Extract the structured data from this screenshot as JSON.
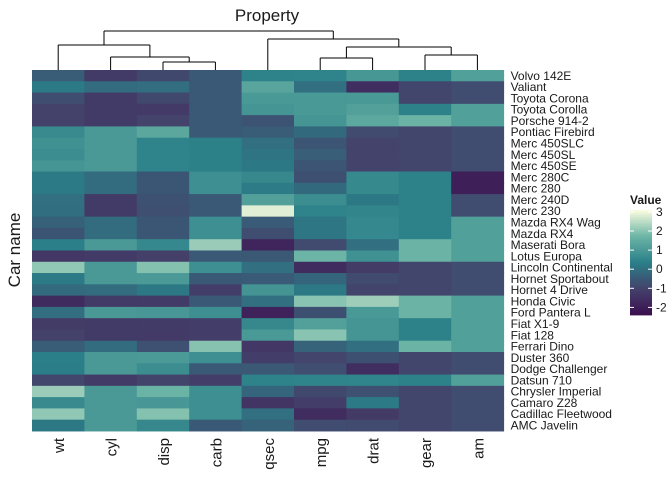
{
  "chart_data": {
    "type": "heatmap",
    "title": "Property",
    "xlabel": "",
    "ylabel": "Car name",
    "columns": [
      "wt",
      "cyl",
      "disp",
      "carb",
      "qsec",
      "mpg",
      "drat",
      "gear",
      "am"
    ],
    "rows": [
      "Volvo 142E",
      "Valiant",
      "Toyota Corona",
      "Toyota Corolla",
      "Porsche 914-2",
      "Pontiac Firebird",
      "Merc 450SLC",
      "Merc 450SL",
      "Merc 450SE",
      "Merc 280C",
      "Merc 280",
      "Merc 240D",
      "Merc 230",
      "Mazda RX4 Wag",
      "Mazda RX4",
      "Maserati Bora",
      "Lotus Europa",
      "Lincoln Continental",
      "Hornet Sportabout",
      "Hornet 4 Drive",
      "Honda Civic",
      "Ford Pantera L",
      "Fiat X1-9",
      "Fiat 128",
      "Ferrari Dino",
      "Duster 360",
      "Dodge Challenger",
      "Datsun 710",
      "Chrysler Imperial",
      "Camaro Z28",
      "Cadillac Fleetwood",
      "AMC Javelin"
    ],
    "values": [
      [
        -0.45,
        -1.22,
        -0.89,
        -0.5,
        0.43,
        0.45,
        0.96,
        0.42,
        1.19
      ],
      [
        0.23,
        -0.1,
        -0.05,
        -0.5,
        1.33,
        0.0,
        -1.56,
        -0.93,
        -0.81
      ],
      [
        -0.77,
        -1.22,
        -0.89,
        -0.5,
        1.0,
        1.0,
        1.0,
        -0.93,
        -0.81
      ],
      [
        -1.04,
        -1.22,
        -1.23,
        -0.5,
        0.9,
        1.0,
        1.2,
        0.42,
        1.19
      ],
      [
        -1.06,
        -1.22,
        -1.0,
        -0.5,
        -0.64,
        0.9,
        1.4,
        1.68,
        1.19
      ],
      [
        0.64,
        1.01,
        1.37,
        -0.5,
        -0.45,
        -0.15,
        -0.84,
        -0.93,
        -0.81
      ],
      [
        0.8,
        1.01,
        0.45,
        0.4,
        0.0,
        -0.6,
        -1.0,
        -0.93,
        -0.81
      ],
      [
        0.7,
        1.01,
        0.45,
        0.4,
        0.1,
        -0.4,
        -1.0,
        -0.93,
        -0.81
      ],
      [
        0.9,
        1.01,
        0.45,
        0.4,
        0.2,
        -0.6,
        -1.0,
        -0.93,
        -0.81
      ],
      [
        0.23,
        -0.1,
        -0.57,
        0.77,
        0.59,
        -0.7,
        0.6,
        0.42,
        -1.96
      ],
      [
        0.23,
        -0.1,
        -0.57,
        0.77,
        0.25,
        -0.15,
        0.6,
        0.42,
        -1.96
      ],
      [
        0.0,
        -1.22,
        -0.68,
        -0.5,
        1.2,
        0.7,
        0.2,
        0.42,
        -0.81
      ],
      [
        -0.03,
        -1.22,
        -0.73,
        -0.5,
        2.83,
        0.45,
        0.5,
        0.42,
        -0.81
      ],
      [
        -0.35,
        -0.1,
        -0.57,
        0.75,
        -0.47,
        0.15,
        0.57,
        0.42,
        1.19
      ],
      [
        -0.61,
        -0.1,
        -0.57,
        0.75,
        -0.78,
        0.15,
        0.57,
        0.42,
        1.19
      ],
      [
        0.36,
        1.01,
        0.57,
        2.15,
        -1.82,
        -0.84,
        0.0,
        1.68,
        1.19
      ],
      [
        -1.31,
        -1.22,
        -1.09,
        -0.5,
        -0.53,
        1.71,
        0.8,
        1.68,
        1.19
      ],
      [
        2.08,
        1.01,
        1.95,
        0.75,
        0.0,
        -1.61,
        -1.2,
        -0.93,
        -0.81
      ],
      [
        0.23,
        1.01,
        1.04,
        -0.5,
        -0.46,
        -0.23,
        -0.84,
        -0.93,
        -0.81
      ],
      [
        -0.13,
        -0.1,
        0.22,
        -1.12,
        0.89,
        0.22,
        -0.97,
        -0.93,
        -0.81
      ],
      [
        -1.64,
        -1.22,
        -1.21,
        -0.5,
        0.0,
        2.0,
        2.2,
        1.68,
        1.19
      ],
      [
        -0.05,
        1.01,
        0.97,
        0.75,
        -1.9,
        -0.71,
        1.0,
        1.68,
        1.19
      ],
      [
        -1.2,
        -1.22,
        -1.22,
        -1.12,
        0.59,
        1.2,
        0.9,
        0.42,
        1.19
      ],
      [
        -1.04,
        -1.22,
        -1.23,
        -1.12,
        1.0,
        2.0,
        0.9,
        0.42,
        1.19
      ],
      [
        -0.45,
        -0.1,
        -0.69,
        1.98,
        -1.31,
        -0.3,
        0.0,
        1.68,
        1.19
      ],
      [
        0.36,
        1.01,
        1.04,
        0.75,
        -1.12,
        -0.96,
        -0.72,
        -0.93,
        -0.81
      ],
      [
        0.31,
        1.01,
        0.7,
        -0.5,
        -0.54,
        -0.76,
        -1.56,
        -0.93,
        -0.81
      ],
      [
        -0.92,
        -1.22,
        -0.99,
        -1.12,
        0.43,
        0.45,
        0.47,
        0.42,
        1.19
      ],
      [
        2.17,
        1.01,
        1.69,
        0.75,
        -0.24,
        -0.89,
        -0.69,
        -0.93,
        -0.81
      ],
      [
        0.64,
        1.01,
        0.97,
        0.75,
        -1.37,
        -1.13,
        0.24,
        -0.93,
        -0.81
      ],
      [
        2.08,
        1.01,
        1.95,
        0.75,
        0.0,
        -1.61,
        -1.25,
        -0.93,
        -0.81
      ],
      [
        0.22,
        1.01,
        0.59,
        -0.5,
        -0.31,
        -0.81,
        -0.84,
        -0.93,
        -0.81
      ]
    ],
    "legend": {
      "title": "Value",
      "ticks": [
        3,
        2,
        1,
        0,
        -1,
        -2
      ],
      "range": [
        -2.4,
        3.1
      ],
      "colors": [
        "#3b0f4f",
        "#44426b",
        "#2a7f88",
        "#6cb5a6",
        "#fcfde0"
      ]
    },
    "dendrogram": "column clustering shown above heatmap",
    "grid": false
  }
}
